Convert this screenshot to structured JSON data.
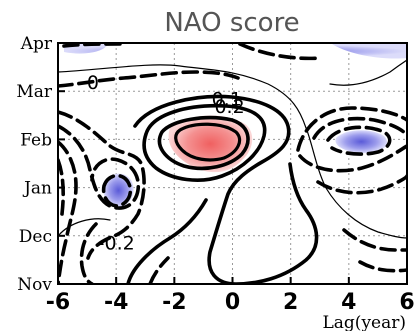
{
  "chart_data": {
    "type": "contour",
    "title": "NAO score",
    "xlabel": "Lag(year)",
    "ylabel": "",
    "xlim": [
      -6,
      6
    ],
    "x_ticks": [
      -6,
      -4,
      -2,
      0,
      2,
      4,
      6
    ],
    "x_tick_labels": [
      "-6",
      "-4",
      "-2",
      "0",
      "2",
      "4",
      "6"
    ],
    "y_categories": [
      "Nov",
      "Dec",
      "Jan",
      "Feb",
      "Mar",
      "Apr"
    ],
    "grid": true,
    "contour_labels": [
      {
        "text": "0",
        "x": -4.8,
        "y": 4.05
      },
      {
        "text": "0.1",
        "x": -0.2,
        "y": 3.7
      },
      {
        "text": "0.2",
        "x": -0.1,
        "y": 3.55
      },
      {
        "text": "-0.2",
        "x": -4.0,
        "y": 0.72
      }
    ],
    "positive_region": {
      "peak_lag": 0.0,
      "peak_month": "Feb",
      "color": "#f07878"
    },
    "negative_regions": [
      {
        "peak_lag": -4.1,
        "peak_month": "Jan",
        "color": "#7878e0"
      },
      {
        "peak_lag": 4.2,
        "peak_month": "Feb",
        "color": "#7878e0"
      },
      {
        "peak_lag": 4.5,
        "peak_month": "Apr",
        "color": "#9090ee"
      }
    ]
  }
}
